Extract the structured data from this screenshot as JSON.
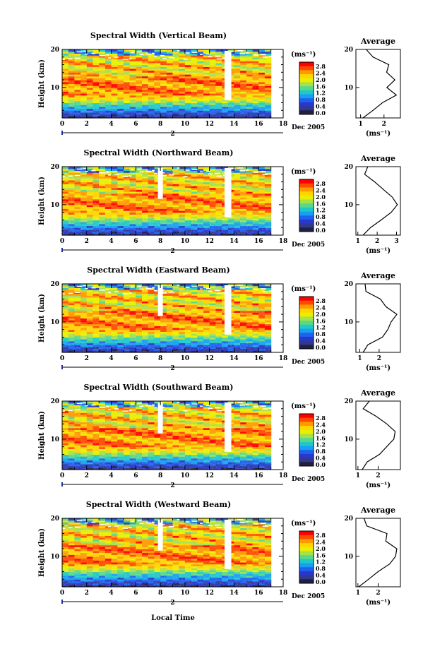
{
  "figure": {
    "xlabel": "Local Time",
    "date_label": "Dec 2005",
    "day_marker": "2"
  },
  "panels": [
    {
      "title": "Spectral Width (Vertical Beam)"
    },
    {
      "title": "Spectral Width (Northward Beam)"
    },
    {
      "title": "Spectral Width (Eastward Beam)"
    },
    {
      "title": "Spectral Width (Southward Beam)"
    },
    {
      "title": "Spectral Width (Westward Beam)"
    }
  ],
  "colorbar": {
    "unit": "(ms⁻¹)",
    "ticks": [
      "2.8",
      "2.4",
      "2.0",
      "1.6",
      "1.2",
      "0.8",
      "0.4",
      "0.0"
    ],
    "colors": [
      "#ff0000",
      "#ff4a00",
      "#ff9a00",
      "#ffd400",
      "#e8f000",
      "#a8e04a",
      "#58d88a",
      "#20c8c8",
      "#18a0f0",
      "#2060f0",
      "#2838c8",
      "#303890",
      "#202040"
    ]
  },
  "average": {
    "title": "Average",
    "xlabel": "(ms⁻¹)"
  },
  "chart_data": [
    {
      "type": "heatmap",
      "title": "Spectral Width (Vertical Beam)",
      "xlabel": "Local Time",
      "ylabel": "Height (km)",
      "x_range": [
        0,
        18
      ],
      "x_ticks": [
        0,
        2,
        4,
        6,
        8,
        10,
        12,
        14,
        16,
        18
      ],
      "y_range": [
        2,
        20
      ],
      "y_ticks": [
        10,
        20
      ],
      "data_x_end": 17,
      "gap_times": [
        13.5
      ],
      "colorbar_range": [
        0.0,
        3.0
      ],
      "profile_heights": [
        2,
        4,
        6,
        8,
        10,
        12,
        14,
        16,
        18,
        20
      ],
      "profile": {
        "x": [
          1.1,
          1.5,
          2.0,
          2.45,
          2.2,
          2.4,
          2.15,
          2.2,
          1.5,
          1.3
        ],
        "xlim": [
          0.8,
          2.7
        ],
        "xticks": [
          1,
          2
        ]
      }
    },
    {
      "type": "heatmap",
      "title": "Spectral Width (Northward Beam)",
      "xlabel": "Local Time",
      "ylabel": "Height (km)",
      "x_range": [
        0,
        18
      ],
      "x_ticks": [
        0,
        2,
        4,
        6,
        8,
        10,
        12,
        14,
        16,
        18
      ],
      "y_range": [
        2,
        20
      ],
      "y_ticks": [
        10,
        20
      ],
      "data_x_end": 17,
      "gap_times": [
        8.0,
        13.5
      ],
      "colorbar_range": [
        0.0,
        3.0
      ],
      "profile_heights": [
        2,
        4,
        6,
        8,
        10,
        12,
        14,
        16,
        18,
        20
      ],
      "profile": {
        "x": [
          1.2,
          1.7,
          2.2,
          2.7,
          3.1,
          2.7,
          2.4,
          1.8,
          1.4,
          1.5
        ],
        "xlim": [
          0.9,
          3.2
        ],
        "xticks": [
          1,
          2,
          3
        ]
      }
    },
    {
      "type": "heatmap",
      "title": "Spectral Width (Eastward Beam)",
      "xlabel": "Local Time",
      "ylabel": "Height (km)",
      "x_range": [
        0,
        18
      ],
      "x_ticks": [
        0,
        2,
        4,
        6,
        8,
        10,
        12,
        14,
        16,
        18
      ],
      "y_range": [
        2,
        20
      ],
      "y_ticks": [
        10,
        20
      ],
      "data_x_end": 17,
      "gap_times": [
        8.0,
        13.5
      ],
      "colorbar_range": [
        0.0,
        3.0
      ],
      "profile_heights": [
        2,
        4,
        6,
        8,
        10,
        12,
        14,
        16,
        18,
        20
      ],
      "profile": {
        "x": [
          1.1,
          1.5,
          2.1,
          2.5,
          2.6,
          2.9,
          2.4,
          2.0,
          1.4,
          1.2
        ],
        "xlim": [
          0.8,
          3.1
        ],
        "xticks": [
          1,
          2
        ]
      }
    },
    {
      "type": "heatmap",
      "title": "Spectral Width (Southward Beam)",
      "xlabel": "Local Time",
      "ylabel": "Height (km)",
      "x_range": [
        0,
        18
      ],
      "x_ticks": [
        0,
        2,
        4,
        6,
        8,
        10,
        12,
        14,
        16,
        18
      ],
      "y_range": [
        2,
        20
      ],
      "y_ticks": [
        10,
        20
      ],
      "data_x_end": 17,
      "gap_times": [
        8.0,
        13.5
      ],
      "colorbar_range": [
        0.0,
        3.0
      ],
      "profile_heights": [
        2,
        4,
        6,
        8,
        10,
        12,
        14,
        16,
        18,
        20
      ],
      "profile": {
        "x": [
          1.2,
          1.5,
          2.0,
          2.5,
          2.7,
          2.9,
          2.4,
          1.9,
          1.3,
          1.5
        ],
        "xlim": [
          0.9,
          3.1
        ],
        "xticks": [
          1,
          2
        ]
      }
    },
    {
      "type": "heatmap",
      "title": "Spectral Width (Westward Beam)",
      "xlabel": "Local Time",
      "ylabel": "Height (km)",
      "x_range": [
        0,
        18
      ],
      "x_ticks": [
        0,
        2,
        4,
        6,
        8,
        10,
        12,
        14,
        16,
        18
      ],
      "y_range": [
        2,
        20
      ],
      "y_ticks": [
        10,
        20
      ],
      "data_x_end": 17,
      "gap_times": [
        8.0,
        13.5
      ],
      "colorbar_range": [
        0.0,
        3.0
      ],
      "profile_heights": [
        2,
        4,
        6,
        8,
        10,
        12,
        14,
        16,
        18,
        20
      ],
      "profile": {
        "x": [
          1.1,
          1.5,
          2.0,
          2.6,
          2.8,
          3.0,
          2.3,
          2.5,
          1.4,
          1.3
        ],
        "xlim": [
          0.9,
          3.1
        ],
        "xticks": [
          1,
          2
        ]
      }
    }
  ]
}
